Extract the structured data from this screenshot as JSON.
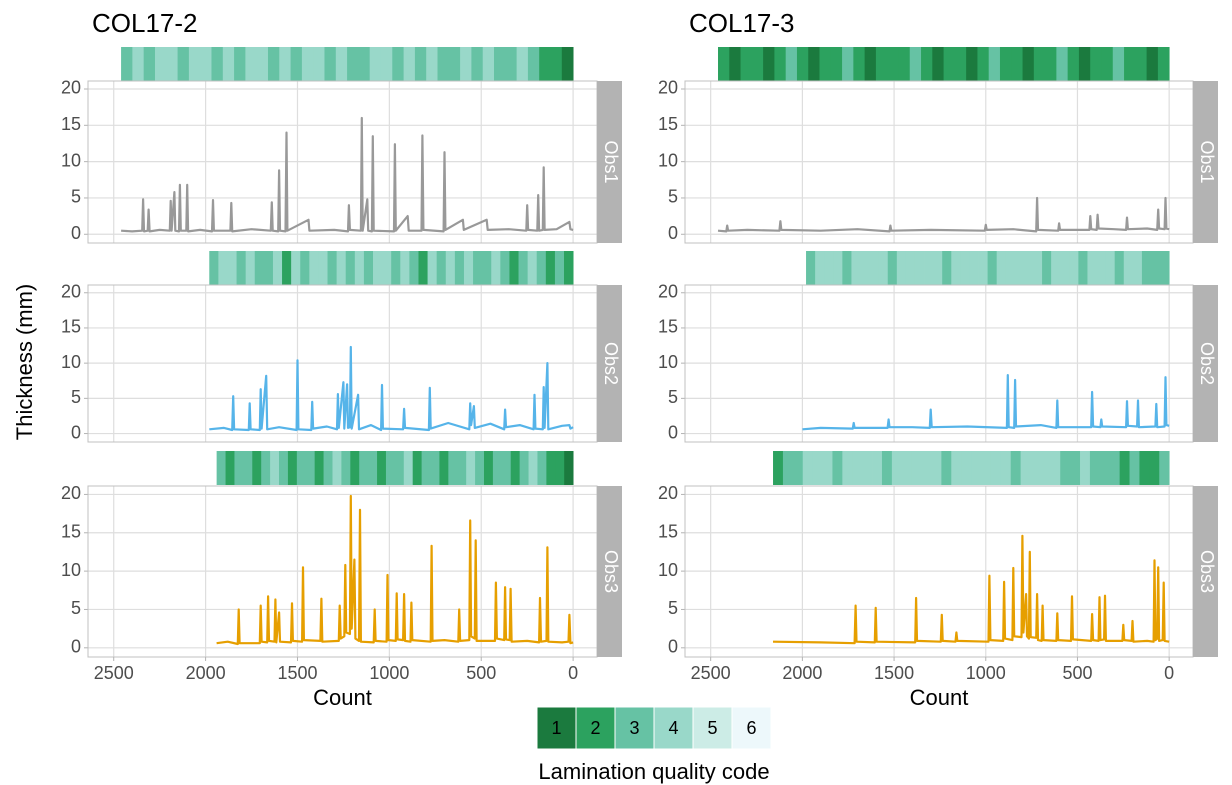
{
  "y_label": "Thickness (mm)",
  "legend": {
    "title": "Lamination quality code",
    "codes": [
      1,
      2,
      3,
      4,
      5,
      6
    ],
    "colors": [
      "#1b7a3e",
      "#2ca25f",
      "#66c2a4",
      "#99d8c9",
      "#ccece6",
      "#edf8fb"
    ]
  },
  "chart_data": [
    {
      "type": "line",
      "title": "COL17-2",
      "strip": "Obs1",
      "xlim": [
        2640,
        -130
      ],
      "ylim": [
        -1.2,
        21.1
      ],
      "xticks": [
        2500,
        2000,
        1500,
        1000,
        500,
        0
      ],
      "yticks": [
        0,
        5,
        10,
        15,
        20
      ],
      "grid": true,
      "x": [
        2460,
        2400,
        2345,
        2340,
        2335,
        2315,
        2310,
        2305,
        2250,
        2195,
        2190,
        2185,
        2170,
        2165,
        2145,
        2140,
        2135,
        2105,
        2100,
        2095,
        2030,
        1965,
        1960,
        1955,
        1865,
        1860,
        1855,
        1750,
        1645,
        1640,
        1635,
        1605,
        1600,
        1595,
        1565,
        1560,
        1555,
        1440,
        1435,
        1300,
        1225,
        1220,
        1215,
        1155,
        1150,
        1145,
        1120,
        1115,
        1095,
        1090,
        1085,
        975,
        970,
        965,
        900,
        895,
        825,
        820,
        815,
        705,
        700,
        695,
        600,
        595,
        470,
        465,
        350,
        255,
        250,
        245,
        195,
        190,
        185,
        165,
        160,
        155,
        90,
        20,
        15,
        0
      ],
      "series": [
        {
          "color": "#999999",
          "values": [
            0.5,
            0.4,
            0.5,
            4.8,
            0.4,
            0.5,
            3.4,
            0.4,
            0.6,
            0.5,
            4.6,
            0.5,
            5.8,
            0.5,
            0.4,
            6.8,
            0.5,
            0.5,
            6.8,
            0.4,
            0.6,
            0.4,
            4.7,
            0.5,
            0.5,
            4.3,
            0.4,
            0.7,
            0.5,
            4.4,
            0.5,
            0.4,
            8.8,
            0.5,
            0.4,
            14,
            0.5,
            2,
            0.5,
            0.6,
            0.4,
            4,
            0.6,
            0.5,
            16,
            0.5,
            4.8,
            0.5,
            0.4,
            13.5,
            0.5,
            0.4,
            12.4,
            0.5,
            2.5,
            0.5,
            0.5,
            13.6,
            0.6,
            0.4,
            11.3,
            0.6,
            2,
            0.6,
            2,
            0.6,
            0.7,
            0.5,
            4,
            0.6,
            0.5,
            5.4,
            0.5,
            0.6,
            9.2,
            0.6,
            0.7,
            1.7,
            0.7,
            0.6
          ]
        }
      ],
      "lamination": {
        "range": [
          2460,
          0
        ],
        "codes": [
          3,
          4,
          3,
          4,
          4,
          3,
          4,
          4,
          3,
          4,
          3,
          4,
          4,
          3,
          4,
          3,
          4,
          4,
          3,
          4,
          3,
          3,
          4,
          4,
          3,
          4,
          3,
          4,
          3,
          3,
          4,
          3,
          4,
          3,
          3,
          4,
          3,
          2,
          2,
          1
        ]
      }
    },
    {
      "type": "line",
      "strip": "Obs2",
      "xlim": [
        2640,
        -130
      ],
      "ylim": [
        -1.2,
        21.1
      ],
      "xticks": [
        2500,
        2000,
        1500,
        1000,
        500,
        0
      ],
      "yticks": [
        0,
        5,
        10,
        15,
        20
      ],
      "grid": true,
      "x": [
        1980,
        1900,
        1855,
        1850,
        1845,
        1765,
        1760,
        1755,
        1705,
        1700,
        1695,
        1670,
        1665,
        1600,
        1505,
        1500,
        1495,
        1425,
        1420,
        1415,
        1340,
        1285,
        1280,
        1275,
        1250,
        1245,
        1230,
        1225,
        1215,
        1210,
        1205,
        1170,
        1165,
        1100,
        1045,
        1040,
        1035,
        925,
        920,
        915,
        785,
        780,
        775,
        680,
        565,
        560,
        555,
        540,
        535,
        450,
        375,
        370,
        365,
        290,
        215,
        210,
        205,
        165,
        160,
        155,
        140,
        135,
        60,
        20,
        15,
        0
      ],
      "series": [
        {
          "color": "#56b4e9",
          "values": [
            0.6,
            0.8,
            0.5,
            5.3,
            0.6,
            0.5,
            4.3,
            0.6,
            0.5,
            6.3,
            0.7,
            8.2,
            0.6,
            0.9,
            0.5,
            10.4,
            0.6,
            0.5,
            4.5,
            0.7,
            1,
            0.6,
            5.6,
            0.8,
            7.3,
            0.7,
            7,
            0.8,
            0.9,
            12.3,
            0.7,
            5.5,
            0.6,
            1.2,
            0.5,
            6.9,
            0.7,
            0.6,
            3.5,
            0.8,
            0.5,
            6.5,
            0.7,
            1.5,
            0.6,
            4.3,
            1.2,
            3.9,
            0.8,
            1.4,
            0.6,
            3.4,
            0.9,
            1.2,
            0.6,
            5.5,
            0.7,
            0.6,
            6.6,
            0.8,
            10,
            0.6,
            1.1,
            1.2,
            0.7,
            0.9
          ]
        }
      ],
      "lamination": {
        "range": [
          1980,
          0
        ],
        "codes": [
          3,
          4,
          4,
          3,
          4,
          3,
          3,
          4,
          2,
          4,
          3,
          4,
          4,
          3,
          4,
          3,
          4,
          3,
          4,
          4,
          3,
          4,
          3,
          2,
          4,
          3,
          4,
          3,
          4,
          3,
          3,
          4,
          3,
          2,
          3,
          4,
          3,
          2,
          3,
          2
        ]
      }
    },
    {
      "type": "line",
      "strip": "Obs3",
      "x_label": "Count",
      "xlim": [
        2640,
        -130
      ],
      "ylim": [
        -1.2,
        21.1
      ],
      "xticks": [
        2500,
        2000,
        1500,
        1000,
        500,
        0
      ],
      "yticks": [
        0,
        5,
        10,
        15,
        20
      ],
      "grid": true,
      "x": [
        1940,
        1880,
        1825,
        1820,
        1815,
        1705,
        1700,
        1695,
        1665,
        1660,
        1655,
        1625,
        1620,
        1615,
        1600,
        1595,
        1535,
        1530,
        1525,
        1475,
        1470,
        1465,
        1375,
        1370,
        1365,
        1275,
        1270,
        1265,
        1245,
        1240,
        1235,
        1215,
        1210,
        1205,
        1190,
        1185,
        1165,
        1160,
        1155,
        1085,
        1080,
        1075,
        1015,
        1010,
        1005,
        965,
        960,
        955,
        925,
        920,
        915,
        885,
        880,
        875,
        775,
        770,
        765,
        700,
        625,
        620,
        615,
        565,
        560,
        555,
        535,
        530,
        525,
        425,
        420,
        415,
        375,
        370,
        365,
        345,
        340,
        335,
        250,
        185,
        180,
        175,
        145,
        140,
        135,
        60,
        25,
        20,
        15,
        0
      ],
      "series": [
        {
          "color": "#e69f00",
          "values": [
            0.6,
            0.8,
            0.5,
            5,
            0.6,
            0.6,
            5.5,
            0.8,
            0.7,
            6.7,
            0.9,
            0.8,
            6.3,
            0.7,
            4.6,
            0.8,
            0.7,
            5.8,
            0.9,
            0.8,
            10.5,
            1,
            0.9,
            6.4,
            0.8,
            0.9,
            5.5,
            1.2,
            1.5,
            10.8,
            2,
            1.8,
            19.8,
            2.5,
            11.5,
            1.2,
            0.9,
            18,
            0.8,
            0.7,
            5,
            0.9,
            0.8,
            9.5,
            1,
            0.9,
            7.1,
            1.1,
            1,
            7,
            0.9,
            0.8,
            5.9,
            1,
            0.8,
            13.3,
            0.9,
            1,
            0.8,
            5,
            0.9,
            1,
            16.6,
            1.5,
            1.2,
            14,
            0.9,
            0.9,
            8.5,
            1.2,
            1,
            7.9,
            1.1,
            1,
            7.7,
            0.8,
            0.9,
            0.7,
            6.5,
            0.8,
            0.9,
            13.1,
            0.8,
            0.7,
            0.8,
            4.3,
            0.6,
            0.7
          ]
        }
      ],
      "lamination": {
        "range": [
          1940,
          0
        ],
        "codes": [
          3,
          2,
          3,
          3,
          2,
          3,
          4,
          3,
          2,
          3,
          3,
          2,
          3,
          4,
          3,
          2,
          3,
          3,
          2,
          3,
          3,
          4,
          2,
          3,
          3,
          2,
          3,
          3,
          4,
          3,
          2,
          3,
          3,
          2,
          3,
          4,
          3,
          2,
          2,
          1
        ]
      }
    },
    {
      "type": "line",
      "title": "COL17-3",
      "strip": "Obs1",
      "xlim": [
        2640,
        -130
      ],
      "ylim": [
        -1.2,
        21.1
      ],
      "xticks": [
        2500,
        2000,
        1500,
        1000,
        500,
        0
      ],
      "yticks": [
        0,
        5,
        10,
        15,
        20
      ],
      "grid": true,
      "x": [
        2460,
        2415,
        2410,
        2405,
        2300,
        2125,
        2120,
        2115,
        1900,
        1700,
        1525,
        1520,
        1515,
        1300,
        1005,
        1000,
        995,
        850,
        725,
        720,
        715,
        605,
        600,
        595,
        435,
        430,
        425,
        395,
        390,
        385,
        300,
        235,
        230,
        225,
        120,
        65,
        60,
        55,
        25,
        20,
        15,
        0
      ],
      "series": [
        {
          "color": "#999999",
          "values": [
            0.5,
            0.4,
            1.2,
            0.5,
            0.6,
            0.5,
            1.8,
            0.6,
            0.5,
            0.7,
            0.4,
            1.2,
            0.5,
            0.6,
            0.5,
            1.3,
            0.6,
            0.7,
            0.4,
            5,
            0.6,
            0.5,
            1.5,
            0.6,
            0.6,
            2.5,
            0.7,
            0.6,
            2.7,
            0.8,
            0.7,
            0.6,
            2.3,
            0.7,
            0.8,
            0.6,
            3.4,
            0.8,
            0.7,
            5,
            0.8,
            0.7
          ]
        }
      ],
      "lamination": {
        "range": [
          2460,
          0
        ],
        "codes": [
          2,
          1,
          2,
          2,
          1,
          2,
          3,
          2,
          1,
          2,
          2,
          3,
          2,
          1,
          2,
          2,
          2,
          3,
          2,
          1,
          2,
          2,
          1,
          2,
          3,
          2,
          2,
          1,
          2,
          2,
          3,
          2,
          1,
          2,
          2,
          3,
          2,
          2,
          1,
          2
        ]
      }
    },
    {
      "type": "line",
      "strip": "Obs2",
      "xlim": [
        2640,
        -130
      ],
      "ylim": [
        -1.2,
        21.1
      ],
      "xticks": [
        2500,
        2000,
        1500,
        1000,
        500,
        0
      ],
      "yticks": [
        0,
        5,
        10,
        15,
        20
      ],
      "grid": true,
      "x": [
        2000,
        1900,
        1725,
        1720,
        1715,
        1535,
        1530,
        1525,
        1400,
        1305,
        1300,
        1295,
        1100,
        885,
        880,
        875,
        845,
        840,
        835,
        700,
        615,
        610,
        605,
        425,
        420,
        415,
        375,
        370,
        365,
        235,
        230,
        225,
        175,
        170,
        165,
        75,
        70,
        65,
        25,
        20,
        15,
        0
      ],
      "series": [
        {
          "color": "#56b4e9",
          "values": [
            0.6,
            0.8,
            0.7,
            1.5,
            0.8,
            0.8,
            2,
            0.9,
            0.9,
            0.8,
            3.4,
            0.9,
            1,
            0.8,
            8.3,
            0.9,
            0.8,
            7.6,
            1,
            1.2,
            0.8,
            4.7,
            0.9,
            0.9,
            5.9,
            1,
            0.9,
            2,
            1,
            0.9,
            4.6,
            1.1,
            1,
            4.7,
            0.9,
            1,
            4.2,
            0.9,
            1,
            8,
            1.2,
            1.1
          ]
        }
      ],
      "lamination": {
        "range": [
          1980,
          0
        ],
        "codes": [
          3,
          4,
          4,
          4,
          3,
          4,
          4,
          4,
          4,
          3,
          4,
          4,
          4,
          4,
          4,
          3,
          4,
          4,
          4,
          4,
          3,
          4,
          4,
          4,
          4,
          4,
          3,
          4,
          4,
          4,
          3,
          4,
          4,
          4,
          3,
          4,
          4,
          3,
          3,
          3
        ]
      }
    },
    {
      "type": "line",
      "strip": "Obs3",
      "x_label": "Count",
      "xlim": [
        2640,
        -130
      ],
      "ylim": [
        -1.2,
        21.1
      ],
      "xticks": [
        2500,
        2000,
        1500,
        1000,
        500,
        0
      ],
      "yticks": [
        0,
        5,
        10,
        15,
        20
      ],
      "grid": true,
      "x": [
        2160,
        1900,
        1715,
        1710,
        1705,
        1605,
        1600,
        1595,
        1385,
        1380,
        1375,
        1245,
        1240,
        1235,
        1165,
        1160,
        1155,
        985,
        980,
        975,
        905,
        900,
        895,
        855,
        850,
        845,
        805,
        800,
        795,
        780,
        775,
        765,
        760,
        755,
        725,
        720,
        715,
        695,
        690,
        685,
        615,
        610,
        605,
        535,
        530,
        525,
        425,
        420,
        415,
        385,
        380,
        375,
        355,
        350,
        345,
        255,
        250,
        245,
        205,
        200,
        195,
        120,
        85,
        80,
        75,
        65,
        60,
        55,
        35,
        30,
        25,
        0
      ],
      "series": [
        {
          "color": "#e69f00",
          "values": [
            0.8,
            0.7,
            0.6,
            5.5,
            0.8,
            0.7,
            5.2,
            0.8,
            0.7,
            6.5,
            0.9,
            0.8,
            4.3,
            0.9,
            0.8,
            2,
            0.9,
            0.8,
            9.4,
            1,
            0.9,
            8.6,
            1.2,
            1,
            10.4,
            1.5,
            1.4,
            14.6,
            2,
            7,
            1.5,
            1.2,
            12.5,
            1.4,
            1.3,
            7,
            1,
            0.9,
            5.5,
            1,
            0.9,
            4.5,
            1,
            0.9,
            6.7,
            1.1,
            0.9,
            4.4,
            1,
            0.9,
            6.6,
            1,
            1.1,
            6.8,
            0.9,
            0.9,
            3,
            1,
            0.9,
            3.5,
            0.8,
            0.9,
            0.8,
            11.4,
            1,
            1.2,
            10.5,
            0.9,
            1,
            8.5,
            0.9,
            0.8
          ]
        }
      ],
      "lamination": {
        "range": [
          2160,
          0
        ],
        "codes": [
          2,
          3,
          3,
          4,
          4,
          4,
          3,
          4,
          4,
          4,
          4,
          3,
          4,
          4,
          4,
          4,
          4,
          3,
          4,
          4,
          4,
          4,
          4,
          4,
          3,
          4,
          4,
          4,
          4,
          3,
          3,
          4,
          3,
          3,
          3,
          2,
          3,
          2,
          2,
          3
        ]
      }
    }
  ]
}
